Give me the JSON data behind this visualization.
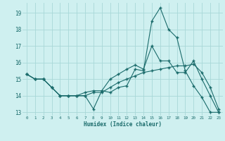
{
  "title": "",
  "xlabel": "Humidex (Indice chaleur)",
  "background_color": "#cff0f0",
  "grid_color": "#a8d8d8",
  "line_color": "#1a6b6b",
  "ylim": [
    12.8,
    19.6
  ],
  "xlim": [
    -0.5,
    23.5
  ],
  "yticks": [
    13,
    14,
    15,
    16,
    17,
    18,
    19
  ],
  "xticks": [
    0,
    1,
    2,
    3,
    4,
    5,
    6,
    7,
    8,
    9,
    10,
    11,
    12,
    13,
    14,
    15,
    16,
    17,
    18,
    19,
    20,
    21,
    22,
    23
  ],
  "line1": [
    15.3,
    15.0,
    15.0,
    14.5,
    14.0,
    14.0,
    14.0,
    14.0,
    13.2,
    14.3,
    14.2,
    14.5,
    14.6,
    15.6,
    15.5,
    18.5,
    19.3,
    18.0,
    17.5,
    15.5,
    14.6,
    13.9,
    13.0,
    13.0
  ],
  "line2": [
    15.3,
    15.0,
    15.0,
    14.5,
    14.0,
    14.0,
    14.0,
    14.2,
    14.3,
    14.3,
    15.0,
    15.3,
    15.6,
    15.85,
    15.6,
    17.0,
    16.1,
    16.1,
    15.4,
    15.4,
    16.1,
    15.0,
    14.0,
    13.0
  ],
  "line3": [
    15.3,
    15.0,
    15.0,
    14.5,
    14.0,
    14.0,
    14.0,
    14.0,
    14.2,
    14.2,
    14.5,
    14.8,
    15.0,
    15.2,
    15.4,
    15.5,
    15.6,
    15.7,
    15.8,
    15.8,
    15.9,
    15.4,
    14.5,
    13.2
  ]
}
